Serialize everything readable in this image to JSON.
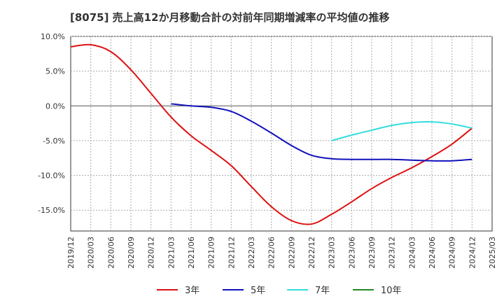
{
  "chart_data": {
    "type": "line",
    "title": "[8075]  売上高12か月移動合計の対前年同期増減率の平均値の推移",
    "xlabel": "",
    "ylabel": "",
    "ylim": [
      -18,
      10
    ],
    "yticks": [
      10,
      5,
      0,
      -5,
      -10,
      -15
    ],
    "ytick_labels": [
      "10.0%",
      "5.0%",
      "0.0%",
      "-5.0%",
      "-10.0%",
      "-15.0%"
    ],
    "x_categories": [
      "2019/12",
      "2020/03",
      "2020/06",
      "2020/09",
      "2020/12",
      "2021/03",
      "2021/06",
      "2021/09",
      "2021/12",
      "2022/03",
      "2022/06",
      "2022/09",
      "2022/12",
      "2023/03",
      "2023/06",
      "2023/09",
      "2023/12",
      "2024/03",
      "2024/06",
      "2024/09",
      "2024/12",
      "2025/03"
    ],
    "grid": true,
    "legend_position": "bottom",
    "series": [
      {
        "name": "3年",
        "color": "#dd1111",
        "x": [
          "2019/12",
          "2020/03",
          "2020/06",
          "2020/09",
          "2020/12",
          "2021/03",
          "2021/06",
          "2021/09",
          "2021/12",
          "2022/03",
          "2022/06",
          "2022/09",
          "2022/12",
          "2023/03",
          "2023/06",
          "2023/09",
          "2023/12",
          "2024/03",
          "2024/06",
          "2024/09",
          "2024/12"
        ],
        "values": [
          8.5,
          8.8,
          7.8,
          5.2,
          1.8,
          -1.6,
          -4.3,
          -6.4,
          -8.6,
          -11.6,
          -14.5,
          -16.5,
          -17.0,
          -15.6,
          -13.8,
          -11.9,
          -10.3,
          -8.9,
          -7.3,
          -5.5,
          -3.2
        ]
      },
      {
        "name": "5年",
        "color": "#1111bb",
        "x": [
          "2021/03",
          "2021/06",
          "2021/09",
          "2021/12",
          "2022/03",
          "2022/06",
          "2022/09",
          "2022/12",
          "2023/03",
          "2023/06",
          "2023/09",
          "2023/12",
          "2024/03",
          "2024/06",
          "2024/09",
          "2024/12"
        ],
        "values": [
          0.3,
          0.0,
          -0.2,
          -0.8,
          -2.2,
          -3.9,
          -5.7,
          -7.1,
          -7.6,
          -7.7,
          -7.7,
          -7.7,
          -7.8,
          -7.9,
          -7.9,
          -7.7
        ]
      },
      {
        "name": "7年",
        "color": "#33dddd",
        "x": [
          "2023/03",
          "2023/06",
          "2023/09",
          "2023/12",
          "2024/03",
          "2024/06",
          "2024/09",
          "2024/12"
        ],
        "values": [
          -5.0,
          -4.2,
          -3.5,
          -2.8,
          -2.4,
          -2.3,
          -2.6,
          -3.2
        ]
      },
      {
        "name": "10年",
        "color": "#228822",
        "x": [],
        "values": []
      }
    ]
  }
}
